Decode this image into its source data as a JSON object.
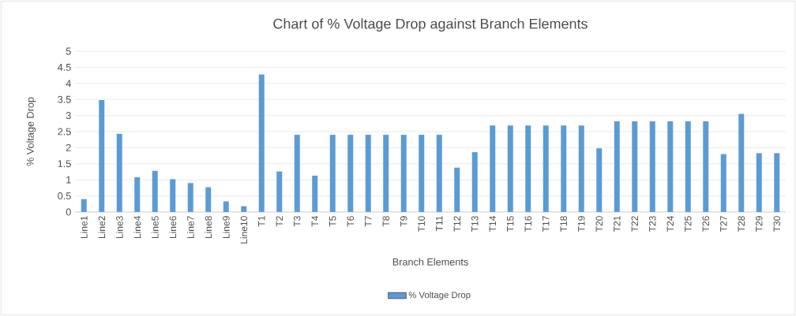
{
  "chart_data": {
    "type": "bar",
    "title": "Chart of % Voltage Drop against Branch Elements",
    "xlabel": "Branch Elements",
    "ylabel": "% Voltage Drop",
    "categories": [
      "Line1",
      "Line2",
      "Line3",
      "Line4",
      "Line5",
      "Line6",
      "Line7",
      "Line8",
      "Line9",
      "Line10",
      "T1",
      "T2",
      "T3",
      "T4",
      "T5",
      "T6",
      "T7",
      "T8",
      "T9",
      "T10",
      "T11",
      "T12",
      "T13",
      "T14",
      "T15",
      "T16",
      "T17",
      "T18",
      "T19",
      "T20",
      "T21",
      "T22",
      "T23",
      "T24",
      "T25",
      "T26",
      "T27",
      "T28",
      "T29",
      "T30"
    ],
    "series": [
      {
        "name": "% Voltage Drop",
        "color": "#5b9bd5",
        "values": [
          0.4,
          3.48,
          2.43,
          1.08,
          1.28,
          1.02,
          0.9,
          0.77,
          0.33,
          0.18,
          4.28,
          1.26,
          2.4,
          1.13,
          2.4,
          2.4,
          2.4,
          2.4,
          2.4,
          2.4,
          2.4,
          1.38,
          1.86,
          2.69,
          2.69,
          2.69,
          2.69,
          2.69,
          2.69,
          1.98,
          2.82,
          2.82,
          2.82,
          2.82,
          2.82,
          2.82,
          1.8,
          3.05,
          1.83,
          1.83
        ]
      }
    ],
    "ylim": [
      0,
      5
    ],
    "yticks": [
      0,
      0.5,
      1,
      1.5,
      2,
      2.5,
      3,
      3.5,
      4,
      4.5,
      5
    ],
    "grid": "y",
    "legend": "bottom"
  }
}
